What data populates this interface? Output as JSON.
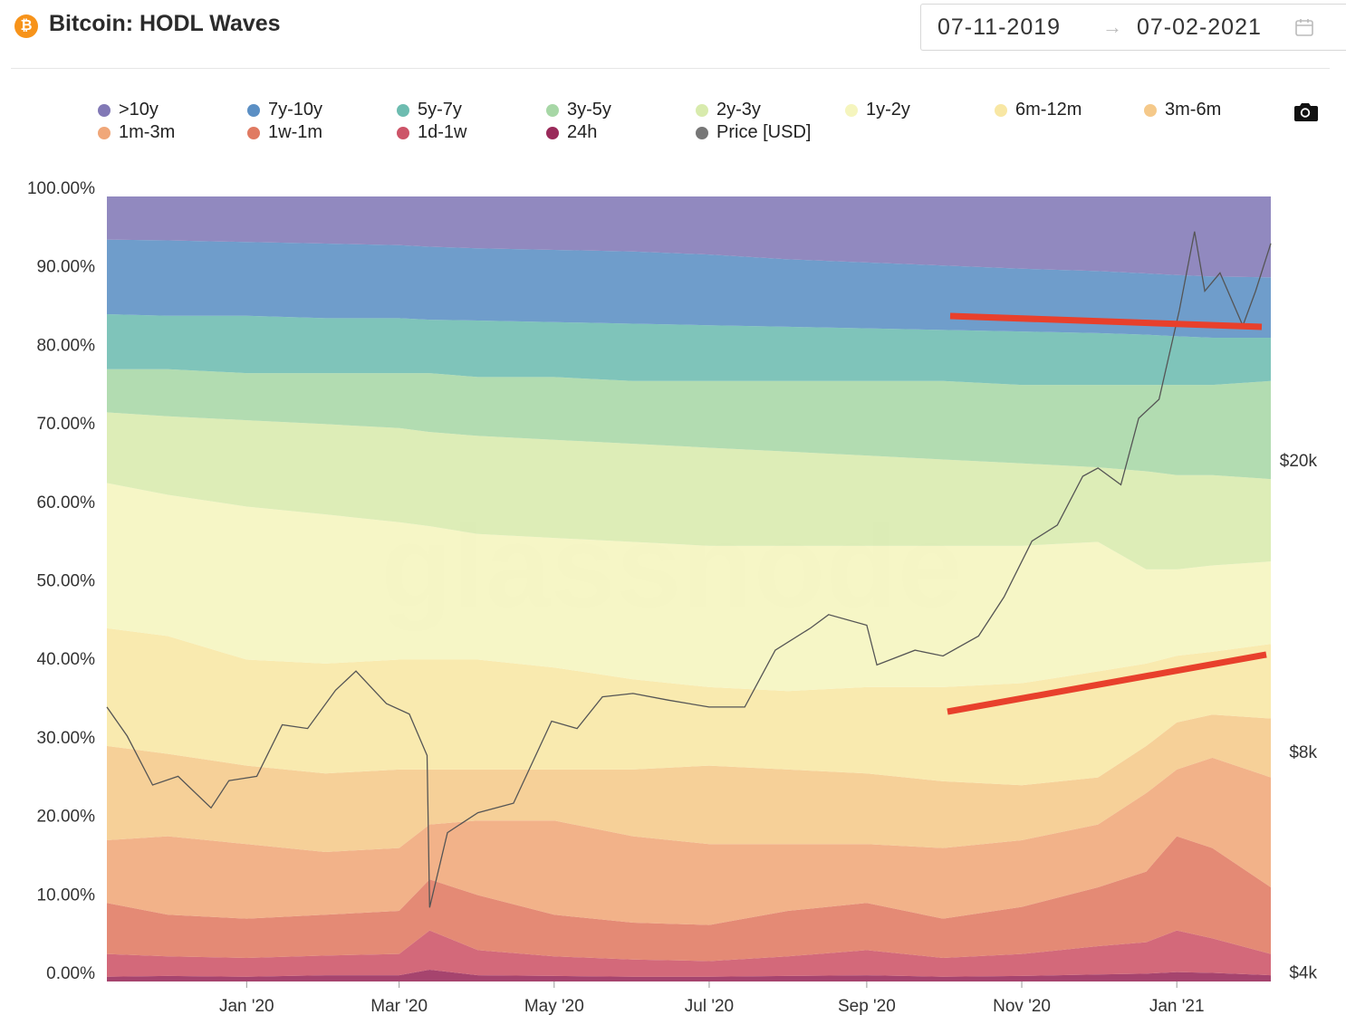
{
  "header": {
    "logo_glyph": "₿",
    "title": "Bitcoin: HODL Waves",
    "date_start": "07-11-2019",
    "date_arrow": "→",
    "date_end": "07-02-2021",
    "calendar_icon": "calendar-icon",
    "camera_icon": "camera-icon"
  },
  "chart_data": {
    "type": "area",
    "title": "Bitcoin: HODL Waves",
    "watermark": "glassnode",
    "stacked": true,
    "legend": [
      {
        "label": ">10y",
        "color": "#8279b6"
      },
      {
        "label": "7y-10y",
        "color": "#5b8fc4"
      },
      {
        "label": "5y-7y",
        "color": "#6dbcb0"
      },
      {
        "label": "3y-5y",
        "color": "#a7d7a6"
      },
      {
        "label": "2y-3y",
        "color": "#d8ebad"
      },
      {
        "label": "1y-2y",
        "color": "#f5f5be"
      },
      {
        "label": "6m-12m",
        "color": "#f8e7a4"
      },
      {
        "label": "3m-6m",
        "color": "#f5c98a"
      },
      {
        "label": "1m-3m",
        "color": "#f0a779"
      },
      {
        "label": "1w-1m",
        "color": "#e07a62"
      },
      {
        "label": "1d-1w",
        "color": "#cd5468"
      },
      {
        "label": "24h",
        "color": "#9a2a5a"
      },
      {
        "label": "Price [USD]",
        "color": "#777777"
      }
    ],
    "y_axis_left": {
      "ticks": [
        "100.00%",
        "90.00%",
        "80.00%",
        "70.00%",
        "60.00%",
        "50.00%",
        "40.00%",
        "30.00%",
        "20.00%",
        "10.00%",
        "0.00%"
      ],
      "range": [
        0,
        100
      ]
    },
    "y_axis_right": {
      "ticks": [
        "$20k",
        "$8k",
        "$4k"
      ],
      "scale": "log"
    },
    "x_axis": {
      "ticks": [
        "Jan '20",
        "Mar '20",
        "May '20",
        "Jul '20",
        "Sep '20",
        "Nov '20",
        "Jan '21"
      ]
    },
    "x_dates": [
      "2019-11-07",
      "2019-12-01",
      "2020-01-01",
      "2020-02-01",
      "2020-03-01",
      "2020-03-13",
      "2020-04-01",
      "2020-05-01",
      "2020-06-01",
      "2020-07-01",
      "2020-08-01",
      "2020-09-01",
      "2020-10-01",
      "2020-11-01",
      "2020-12-01",
      "2020-12-20",
      "2021-01-01",
      "2021-01-15",
      "2021-02-07"
    ],
    "cumulative_boundaries_pct": [
      {
        "label": "24h",
        "values": [
          0.6,
          0.7,
          0.6,
          0.8,
          0.8,
          1.5,
          0.8,
          0.7,
          0.6,
          0.6,
          0.7,
          0.8,
          0.6,
          0.7,
          0.9,
          1.0,
          1.2,
          1.1,
          0.8
        ]
      },
      {
        "label": "1d-1w",
        "values": [
          3.5,
          3.2,
          3.0,
          3.3,
          3.5,
          6.5,
          4.0,
          3.2,
          2.8,
          2.6,
          3.2,
          4.0,
          3.0,
          3.5,
          4.5,
          5.0,
          6.5,
          5.5,
          3.5
        ]
      },
      {
        "label": "1w-1m",
        "values": [
          10.0,
          8.5,
          8.0,
          8.5,
          9.0,
          13.0,
          11.0,
          8.5,
          7.5,
          7.2,
          9.0,
          10.0,
          8.0,
          9.5,
          12.0,
          14.0,
          18.5,
          17.0,
          12.0
        ]
      },
      {
        "label": "1m-3m",
        "values": [
          18.0,
          18.5,
          17.5,
          16.5,
          17.0,
          20.0,
          20.5,
          20.5,
          18.5,
          17.5,
          17.5,
          17.5,
          17.0,
          18.0,
          20.0,
          24.0,
          27.0,
          28.5,
          26.0
        ]
      },
      {
        "label": "3m-6m",
        "values": [
          30.0,
          29.0,
          27.5,
          26.5,
          27.0,
          27.0,
          27.0,
          27.0,
          27.0,
          27.5,
          27.0,
          26.5,
          25.5,
          25.0,
          26.0,
          30.0,
          33.0,
          34.0,
          33.5
        ]
      },
      {
        "label": "6m-12m",
        "values": [
          45.0,
          44.0,
          41.0,
          40.5,
          41.0,
          41.0,
          41.0,
          40.0,
          38.5,
          37.5,
          37.0,
          37.5,
          37.5,
          38.0,
          39.5,
          40.5,
          41.5,
          42.0,
          43.0
        ]
      },
      {
        "label": "1y-2y",
        "values": [
          63.5,
          62.0,
          60.5,
          59.5,
          58.5,
          58.0,
          57.0,
          56.5,
          56.0,
          55.5,
          55.5,
          55.5,
          55.5,
          55.5,
          56.0,
          52.5,
          52.5,
          53.0,
          53.5
        ]
      },
      {
        "label": "2y-3y",
        "values": [
          72.5,
          72.0,
          71.5,
          71.0,
          70.5,
          70.0,
          69.5,
          69.0,
          68.5,
          68.0,
          67.5,
          67.0,
          66.5,
          66.0,
          65.5,
          65.0,
          64.5,
          64.5,
          64.0
        ]
      },
      {
        "label": "3y-5y",
        "values": [
          78.0,
          78.0,
          77.5,
          77.5,
          77.5,
          77.5,
          77.0,
          77.0,
          76.5,
          76.5,
          76.5,
          76.5,
          76.5,
          76.0,
          76.0,
          76.0,
          76.0,
          76.0,
          76.5
        ]
      },
      {
        "label": "5y-7y",
        "values": [
          85.0,
          84.8,
          84.8,
          84.5,
          84.5,
          84.3,
          84.2,
          84.0,
          83.8,
          83.6,
          83.4,
          83.2,
          83.0,
          82.8,
          82.6,
          82.4,
          82.2,
          82.0,
          82.0
        ]
      },
      {
        "label": "7y-10y",
        "values": [
          94.5,
          94.4,
          94.2,
          94.0,
          93.8,
          93.6,
          93.4,
          93.2,
          93.0,
          92.6,
          92.0,
          91.6,
          91.2,
          90.8,
          90.5,
          90.2,
          90.0,
          89.8,
          89.7
        ]
      },
      {
        "label": ">10y",
        "values": [
          100,
          100,
          100,
          100,
          100,
          100,
          100,
          100,
          100,
          100,
          100,
          100,
          100,
          100,
          100,
          100,
          100,
          100,
          100
        ]
      }
    ],
    "price_usd": {
      "x": [
        "2019-11-07",
        "2019-11-15",
        "2019-11-25",
        "2019-12-05",
        "2019-12-18",
        "2019-12-25",
        "2020-01-05",
        "2020-01-15",
        "2020-01-25",
        "2020-02-05",
        "2020-02-13",
        "2020-02-25",
        "2020-03-05",
        "2020-03-12",
        "2020-03-13",
        "2020-03-20",
        "2020-04-01",
        "2020-04-15",
        "2020-04-30",
        "2020-05-10",
        "2020-05-20",
        "2020-06-01",
        "2020-06-15",
        "2020-07-01",
        "2020-07-15",
        "2020-07-27",
        "2020-08-10",
        "2020-08-17",
        "2020-09-01",
        "2020-09-05",
        "2020-09-20",
        "2020-10-01",
        "2020-10-15",
        "2020-10-25",
        "2020-11-05",
        "2020-11-15",
        "2020-11-25",
        "2020-12-01",
        "2020-12-10",
        "2020-12-17",
        "2020-12-25",
        "2021-01-02",
        "2021-01-08",
        "2021-01-12",
        "2021-01-18",
        "2021-01-27",
        "2021-02-01",
        "2021-02-07"
      ],
      "values": [
        9200,
        8400,
        7200,
        7400,
        6700,
        7300,
        7400,
        8700,
        8600,
        9700,
        10300,
        9300,
        9000,
        7900,
        4900,
        6200,
        6600,
        6800,
        8800,
        8600,
        9500,
        9600,
        9400,
        9200,
        9200,
        11000,
        11800,
        12300,
        11900,
        10500,
        11000,
        10800,
        11500,
        13000,
        15500,
        16300,
        19000,
        19500,
        18500,
        22800,
        24200,
        32000,
        41000,
        34000,
        36000,
        30500,
        34000,
        39500
      ]
    },
    "annotations": [
      {
        "type": "trend-line",
        "color": "#e8402c",
        "description": "slightly declining line on 7y-10y / 5y-7y boundary"
      },
      {
        "type": "trend-line",
        "color": "#e8402c",
        "description": "rising line on 6m-12m / 1y-2y boundary"
      }
    ]
  }
}
